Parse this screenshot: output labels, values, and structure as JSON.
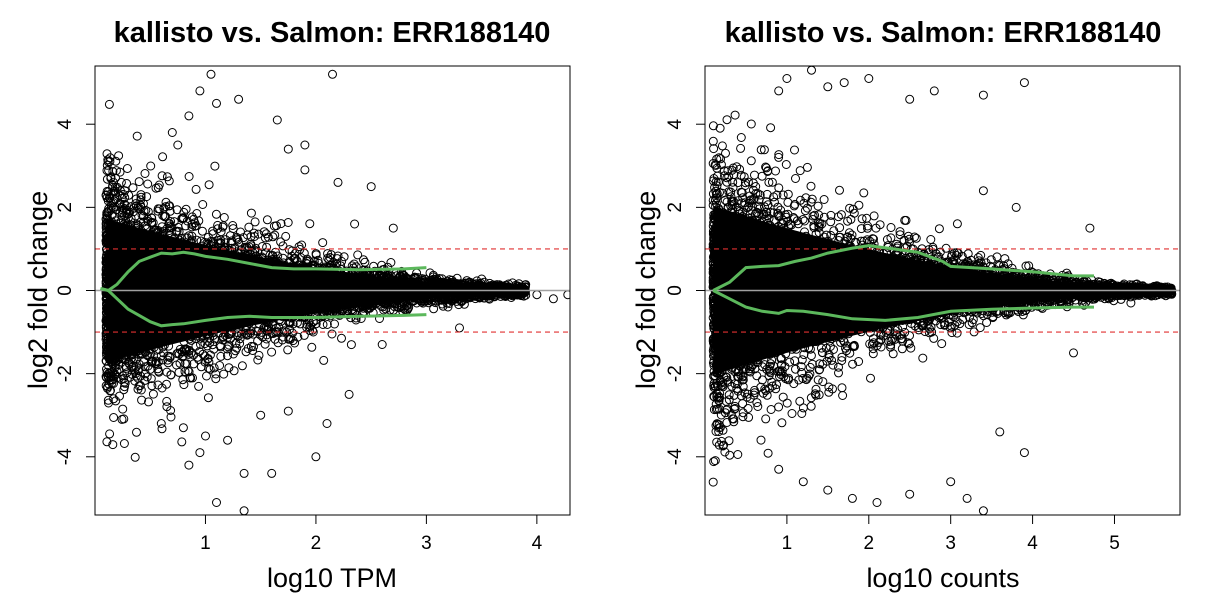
{
  "chart_data": [
    {
      "type": "scatter",
      "title": "kallisto vs. Salmon: ERR188140",
      "xlabel": "log10 TPM",
      "ylabel": "log2 fold change",
      "xlim": [
        0,
        4.3
      ],
      "ylim": [
        -5.4,
        5.4
      ],
      "xticks": [
        1,
        2,
        3,
        4
      ],
      "yticks": [
        -4,
        -2,
        0,
        2,
        4
      ],
      "grid": false,
      "zero_line": 0,
      "threshold_lines": [
        1,
        -1
      ],
      "colors": {
        "points": "#000000",
        "lowess": "#5cb85c",
        "threshold": "#e03030",
        "zero": "#a0a0a0"
      },
      "lowess_upper": [
        [
          0.05,
          0.05
        ],
        [
          0.12,
          0.0
        ],
        [
          0.2,
          0.15
        ],
        [
          0.3,
          0.45
        ],
        [
          0.4,
          0.7
        ],
        [
          0.5,
          0.8
        ],
        [
          0.6,
          0.9
        ],
        [
          0.7,
          0.88
        ],
        [
          0.8,
          0.92
        ],
        [
          0.9,
          0.88
        ],
        [
          1.0,
          0.82
        ],
        [
          1.2,
          0.75
        ],
        [
          1.4,
          0.65
        ],
        [
          1.6,
          0.55
        ],
        [
          1.8,
          0.52
        ],
        [
          2.0,
          0.52
        ],
        [
          2.4,
          0.5
        ],
        [
          2.8,
          0.52
        ],
        [
          3.0,
          0.55
        ]
      ],
      "lowess_lower": [
        [
          0.05,
          0.05
        ],
        [
          0.12,
          0.0
        ],
        [
          0.2,
          -0.2
        ],
        [
          0.3,
          -0.45
        ],
        [
          0.4,
          -0.6
        ],
        [
          0.5,
          -0.75
        ],
        [
          0.6,
          -0.85
        ],
        [
          0.7,
          -0.82
        ],
        [
          0.8,
          -0.8
        ],
        [
          1.0,
          -0.72
        ],
        [
          1.2,
          -0.65
        ],
        [
          1.4,
          -0.62
        ],
        [
          1.6,
          -0.65
        ],
        [
          1.8,
          -0.65
        ],
        [
          2.0,
          -0.65
        ],
        [
          2.4,
          -0.62
        ],
        [
          2.8,
          -0.6
        ],
        [
          3.0,
          -0.58
        ]
      ],
      "points": {
        "dense_region": {
          "x_range": [
            0.1,
            3.9
          ],
          "spread_at_low_x": 3.0,
          "spread_at_high_x": 0.15
        },
        "outliers": [
          [
            0.7,
            3.8
          ],
          [
            0.75,
            3.5
          ],
          [
            0.85,
            4.2
          ],
          [
            0.95,
            4.8
          ],
          [
            1.1,
            4.5
          ],
          [
            1.3,
            4.6
          ],
          [
            1.65,
            4.1
          ],
          [
            2.15,
            5.2
          ],
          [
            1.05,
            5.2
          ],
          [
            0.6,
            -3.2
          ],
          [
            0.8,
            -3.3
          ],
          [
            1.0,
            -3.5
          ],
          [
            1.2,
            -3.6
          ],
          [
            1.35,
            -4.4
          ],
          [
            1.6,
            -4.4
          ],
          [
            2.0,
            -4.0
          ],
          [
            2.1,
            -3.2
          ],
          [
            1.1,
            -5.1
          ],
          [
            1.35,
            -5.3
          ],
          [
            0.85,
            -4.2
          ],
          [
            0.95,
            -3.9
          ],
          [
            1.5,
            -3.0
          ],
          [
            1.75,
            -2.9
          ],
          [
            2.3,
            -2.5
          ],
          [
            2.6,
            -1.3
          ],
          [
            3.3,
            -0.9
          ],
          [
            2.5,
            2.5
          ],
          [
            2.2,
            2.6
          ],
          [
            2.35,
            1.6
          ],
          [
            2.7,
            1.5
          ],
          [
            1.9,
            2.9
          ],
          [
            1.75,
            3.4
          ],
          [
            1.9,
            3.5
          ],
          [
            4.0,
            -0.1
          ],
          [
            4.15,
            -0.2
          ],
          [
            4.28,
            -0.1
          ],
          [
            3.7,
            0.1
          ],
          [
            3.85,
            -0.05
          ]
        ]
      }
    },
    {
      "type": "scatter",
      "title": "kallisto vs. Salmon: ERR188140",
      "xlabel": "log10 counts",
      "ylabel": "log2 fold change",
      "xlim": [
        0,
        5.8
      ],
      "ylim": [
        -5.4,
        5.4
      ],
      "xticks": [
        1,
        2,
        3,
        4,
        5
      ],
      "yticks": [
        -4,
        -2,
        0,
        2,
        4
      ],
      "grid": false,
      "zero_line": 0,
      "threshold_lines": [
        1,
        -1
      ],
      "colors": {
        "points": "#000000",
        "lowess": "#5cb85c",
        "threshold": "#e03030",
        "zero": "#a0a0a0"
      },
      "lowess_upper": [
        [
          0.1,
          0.0
        ],
        [
          0.3,
          0.2
        ],
        [
          0.5,
          0.55
        ],
        [
          0.7,
          0.58
        ],
        [
          0.9,
          0.6
        ],
        [
          1.1,
          0.7
        ],
        [
          1.3,
          0.78
        ],
        [
          1.5,
          0.9
        ],
        [
          1.8,
          1.02
        ],
        [
          2.0,
          1.08
        ],
        [
          2.3,
          1.0
        ],
        [
          2.6,
          0.92
        ],
        [
          2.9,
          0.7
        ],
        [
          3.0,
          0.58
        ],
        [
          3.5,
          0.52
        ],
        [
          4.0,
          0.45
        ],
        [
          4.5,
          0.35
        ],
        [
          4.75,
          0.35
        ]
      ],
      "lowess_lower": [
        [
          0.1,
          0.0
        ],
        [
          0.3,
          -0.2
        ],
        [
          0.5,
          -0.4
        ],
        [
          0.7,
          -0.5
        ],
        [
          0.9,
          -0.55
        ],
        [
          1.0,
          -0.48
        ],
        [
          1.2,
          -0.5
        ],
        [
          1.5,
          -0.58
        ],
        [
          1.8,
          -0.68
        ],
        [
          2.2,
          -0.72
        ],
        [
          2.6,
          -0.65
        ],
        [
          3.0,
          -0.5
        ],
        [
          3.5,
          -0.45
        ],
        [
          4.0,
          -0.42
        ],
        [
          4.5,
          -0.4
        ],
        [
          4.75,
          -0.4
        ]
      ],
      "points": {
        "dense_region": {
          "x_range": [
            0.1,
            5.7
          ],
          "spread_at_low_x": 3.6,
          "spread_at_high_x": 0.1
        },
        "outliers": [
          [
            0.9,
            4.8
          ],
          [
            1.0,
            5.1
          ],
          [
            1.3,
            5.3
          ],
          [
            1.5,
            4.9
          ],
          [
            1.7,
            5.0
          ],
          [
            2.0,
            5.1
          ],
          [
            2.5,
            4.6
          ],
          [
            2.8,
            4.8
          ],
          [
            3.4,
            4.7
          ],
          [
            3.9,
            5.0
          ],
          [
            3.4,
            2.4
          ],
          [
            3.8,
            2.0
          ],
          [
            4.7,
            1.5
          ],
          [
            0.9,
            -4.3
          ],
          [
            1.2,
            -4.6
          ],
          [
            1.5,
            -4.8
          ],
          [
            1.8,
            -5.0
          ],
          [
            2.1,
            -5.1
          ],
          [
            2.5,
            -4.9
          ],
          [
            3.0,
            -4.6
          ],
          [
            3.2,
            -5.0
          ],
          [
            3.4,
            -5.3
          ],
          [
            3.6,
            -3.4
          ],
          [
            3.9,
            -3.9
          ],
          [
            4.5,
            -1.5
          ],
          [
            5.2,
            -0.3
          ],
          [
            5.5,
            0.05
          ],
          [
            5.7,
            0.0
          ],
          [
            5.6,
            -0.05
          ]
        ]
      }
    }
  ]
}
